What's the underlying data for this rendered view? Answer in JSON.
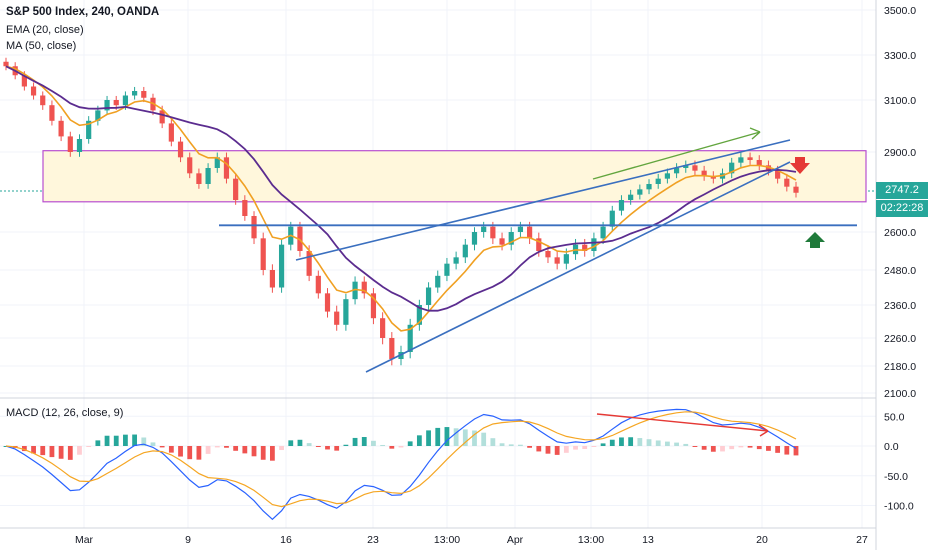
{
  "header": {
    "title": "S&P 500 Index, 240, OANDA",
    "ema_label": "EMA (20, close)",
    "ma_label": "MA (50, close)",
    "macd_label": "MACD (12, 26, close, 9)"
  },
  "price_tags": {
    "last_price": "2747.2",
    "countdown": "02:22:28"
  },
  "colors": {
    "up": "#26a69a",
    "down": "#ef5350",
    "ema": "#f0a022",
    "ma": "#5b2c8f",
    "trend": "#3a6fbf",
    "zone_fill": "#fff7dc",
    "zone_border": "#b84fd0",
    "macd_line": "#2962ff",
    "signal_line": "#f5a623",
    "green_arrow": "#62a53e",
    "red_arrow": "#e53935"
  },
  "chart_data": [
    {
      "type": "candlestick",
      "panel": "price",
      "x_ticks": [
        "Mar",
        "9",
        "16",
        "23",
        "13:00",
        "Apr",
        "13:00",
        "13",
        "20",
        "27"
      ],
      "y_ticks": [
        2100,
        2180,
        2260,
        2360,
        2480,
        2600,
        2747.2,
        2900,
        3100,
        3300,
        3500
      ],
      "y_tick_labels": [
        "2100.0",
        "2180.0",
        "2260.0",
        "2360.0",
        "2480.0",
        "2600.0",
        "",
        "2900.0",
        "3100.0",
        "3300.0",
        "3500.0"
      ],
      "closes_approx": [
        3250,
        3210,
        3160,
        3120,
        3080,
        3020,
        2960,
        2900,
        2950,
        3020,
        3060,
        3100,
        3080,
        3120,
        3140,
        3110,
        3060,
        3010,
        2940,
        2880,
        2820,
        2780,
        2840,
        2880,
        2800,
        2720,
        2660,
        2580,
        2480,
        2420,
        2560,
        2620,
        2540,
        2460,
        2400,
        2340,
        2300,
        2380,
        2440,
        2400,
        2320,
        2260,
        2200,
        2220,
        2300,
        2360,
        2420,
        2460,
        2500,
        2520,
        2560,
        2600,
        2620,
        2580,
        2560,
        2600,
        2620,
        2580,
        2540,
        2520,
        2500,
        2530,
        2560,
        2540,
        2580,
        2620,
        2680,
        2720,
        2740,
        2760,
        2780,
        2800,
        2820,
        2840,
        2850,
        2830,
        2810,
        2800,
        2820,
        2860,
        2880,
        2870,
        2850,
        2830,
        2800,
        2770,
        2747.2
      ],
      "ema_20": {
        "name": "EMA (20, close)"
      },
      "ma_50": {
        "name": "MA (50, close)"
      },
      "resistance_zone": [
        2747,
        2905
      ],
      "support_line": 2625
    },
    {
      "type": "macd",
      "panel": "macd",
      "y_ticks": [
        50,
        0,
        -50,
        -100
      ],
      "y_tick_labels": [
        "50.0",
        "0.0",
        "-50.0",
        "-100.0"
      ]
    }
  ]
}
